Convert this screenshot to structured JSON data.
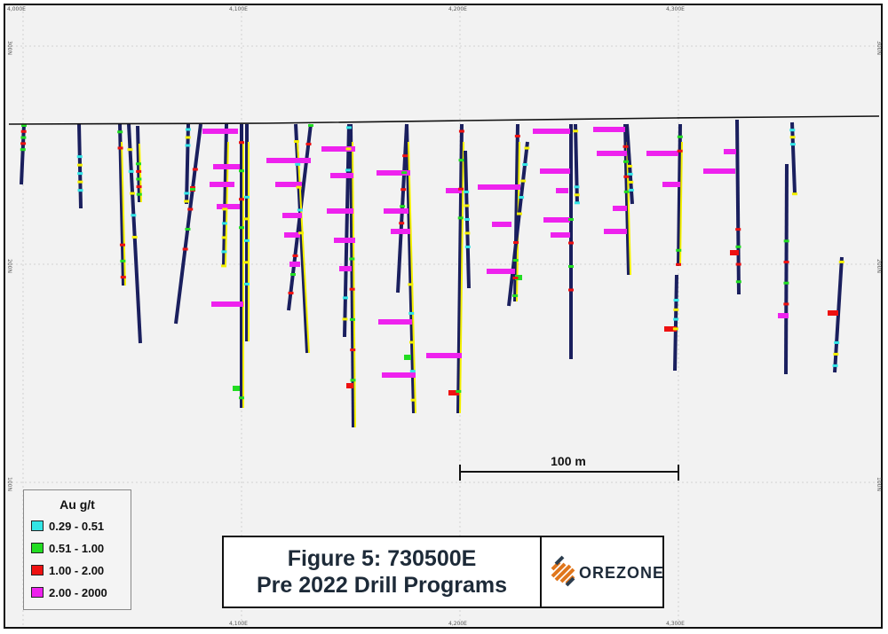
{
  "figure": {
    "title_line1": "Figure 5: 730500E",
    "title_line2": "Pre 2022 Drill Programs",
    "company": "OREZONE"
  },
  "legend": {
    "title": "Au g/t",
    "items": [
      {
        "label": "0.29 - 0.51",
        "color": "#33e6e6"
      },
      {
        "label": "0.51 - 1.00",
        "color": "#22dd22"
      },
      {
        "label": "1.00 - 2.00",
        "color": "#ee1111"
      },
      {
        "label": "2.00 - 2000",
        "color": "#ee22ee"
      }
    ]
  },
  "scale_bar": {
    "label": "100 m"
  },
  "grid": {
    "x_ticks_top": [
      "4,000E",
      "4,100E",
      "4,200E",
      "4,300E"
    ],
    "x_ticks_bottom": [
      "4,100E",
      "4,200E",
      "4,300E"
    ],
    "y_ticks_left": [
      "300N",
      "200N",
      "100N"
    ],
    "y_ticks_right": [
      "300N",
      "200N",
      "100N"
    ]
  },
  "colors": {
    "trace": "#1a1f5e",
    "trace_alt": "#f4f000",
    "background": "#f2f2f2"
  }
}
